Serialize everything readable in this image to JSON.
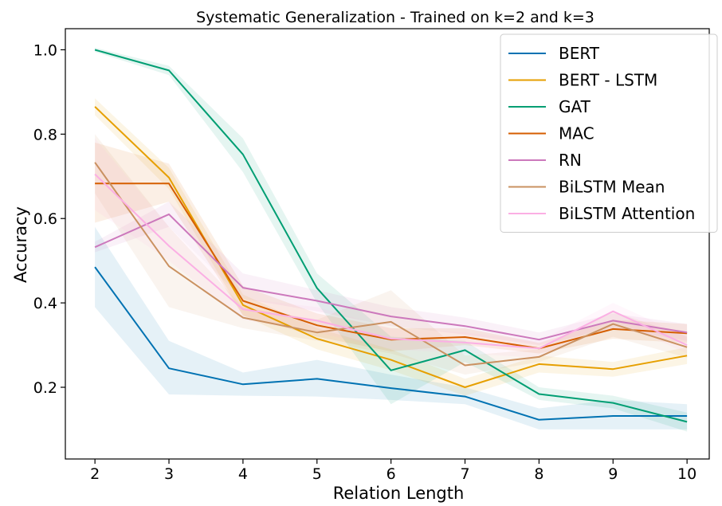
{
  "chart_data": {
    "type": "line",
    "title": "Systematic Generalization - Trained on k=2 and k=3",
    "xlabel": "Relation Length",
    "ylabel": "Accuracy",
    "x": [
      2,
      3,
      4,
      5,
      6,
      7,
      8,
      9,
      10
    ],
    "xlim": [
      1.6,
      10.3
    ],
    "ylim": [
      0.03,
      1.05
    ],
    "xticks": [
      2,
      3,
      4,
      5,
      6,
      7,
      8,
      9,
      10
    ],
    "yticks": [
      0.2,
      0.4,
      0.6,
      0.8,
      1.0
    ],
    "ytick_labels": [
      "0.2",
      "0.4",
      "0.6",
      "0.8",
      "1.0"
    ],
    "grid": false,
    "legend_position": "top-right",
    "series": [
      {
        "name": "BERT",
        "color": "#0072b2",
        "values": [
          0.485,
          0.245,
          0.207,
          0.22,
          0.198,
          0.178,
          0.123,
          0.132,
          0.132
        ],
        "lower": [
          0.39,
          0.183,
          0.18,
          0.178,
          0.17,
          0.16,
          0.1,
          0.1,
          0.1
        ],
        "upper": [
          0.58,
          0.31,
          0.235,
          0.265,
          0.23,
          0.2,
          0.15,
          0.17,
          0.16
        ]
      },
      {
        "name": "BERT - LSTM",
        "color": "#e69f00",
        "values": [
          0.865,
          0.697,
          0.395,
          0.315,
          0.265,
          0.2,
          0.255,
          0.243,
          0.275
        ],
        "lower": [
          0.845,
          0.67,
          0.37,
          0.29,
          0.24,
          0.18,
          0.235,
          0.225,
          0.255
        ],
        "upper": [
          0.885,
          0.72,
          0.42,
          0.34,
          0.29,
          0.22,
          0.275,
          0.26,
          0.295
        ]
      },
      {
        "name": "GAT",
        "color": "#009e73",
        "values": [
          1.0,
          0.951,
          0.752,
          0.435,
          0.24,
          0.288,
          0.184,
          0.163,
          0.118
        ],
        "lower": [
          0.995,
          0.94,
          0.71,
          0.4,
          0.16,
          0.26,
          0.17,
          0.15,
          0.095
        ],
        "upper": [
          1.005,
          0.962,
          0.79,
          0.47,
          0.32,
          0.31,
          0.2,
          0.18,
          0.14
        ]
      },
      {
        "name": "MAC",
        "color": "#d55e00",
        "values": [
          0.683,
          0.683,
          0.405,
          0.347,
          0.313,
          0.319,
          0.292,
          0.338,
          0.328
        ],
        "lower": [
          0.59,
          0.64,
          0.37,
          0.32,
          0.285,
          0.3,
          0.28,
          0.315,
          0.305
        ],
        "upper": [
          0.78,
          0.73,
          0.44,
          0.375,
          0.34,
          0.34,
          0.305,
          0.36,
          0.35
        ]
      },
      {
        "name": "RN",
        "color": "#cc78bc",
        "values": [
          0.532,
          0.61,
          0.436,
          0.405,
          0.368,
          0.345,
          0.313,
          0.358,
          0.33
        ],
        "lower": [
          0.52,
          0.58,
          0.41,
          0.38,
          0.345,
          0.325,
          0.3,
          0.34,
          0.31
        ],
        "upper": [
          0.545,
          0.64,
          0.47,
          0.43,
          0.39,
          0.365,
          0.33,
          0.375,
          0.35
        ]
      },
      {
        "name": "BiLSTM Mean",
        "color": "#ca9161",
        "values": [
          0.733,
          0.487,
          0.365,
          0.33,
          0.355,
          0.252,
          0.272,
          0.35,
          0.295
        ],
        "lower": [
          0.66,
          0.39,
          0.34,
          0.31,
          0.28,
          0.23,
          0.26,
          0.32,
          0.27
        ],
        "upper": [
          0.8,
          0.58,
          0.39,
          0.36,
          0.43,
          0.275,
          0.29,
          0.38,
          0.32
        ]
      },
      {
        "name": "BiLSTM Attention",
        "color": "#fbafe4",
        "values": [
          0.705,
          0.535,
          0.385,
          0.358,
          0.315,
          0.306,
          0.292,
          0.38,
          0.3
        ],
        "lower": [
          0.62,
          0.5,
          0.36,
          0.33,
          0.29,
          0.28,
          0.27,
          0.36,
          0.28
        ],
        "upper": [
          0.79,
          0.58,
          0.41,
          0.39,
          0.34,
          0.33,
          0.31,
          0.4,
          0.32
        ]
      }
    ]
  }
}
